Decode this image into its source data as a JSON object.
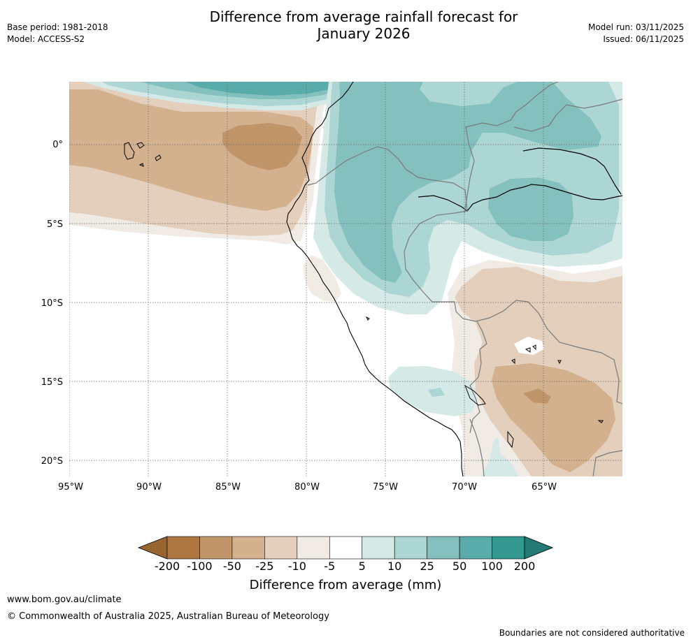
{
  "header": {
    "title_line1": "Difference from average rainfall forecast for",
    "title_line2": "January 2026",
    "base_period": "Base period: 1981-2018",
    "model": "Model: ACCESS-S2",
    "model_run": "Model run: 03/11/2025",
    "issued": "Issued: 06/11/2025"
  },
  "map": {
    "longitude_labels": [
      "95°W",
      "90°W",
      "85°W",
      "80°W",
      "75°W",
      "70°W",
      "65°W"
    ],
    "latitude_labels": [
      "0°",
      "5°S",
      "10°S",
      "15°S",
      "20°S"
    ]
  },
  "legend": {
    "title": "Difference from average (mm)",
    "ticks": [
      "-200",
      "-100",
      "-50",
      "-25",
      "-10",
      "-5",
      "5",
      "10",
      "25",
      "50",
      "100",
      "200"
    ],
    "colors": [
      "#986530",
      "#ae7741",
      "#c1956a",
      "#d3b08e",
      "#e3cfbc",
      "#f0ebe5",
      "#ffffff",
      "#d5e9e7",
      "#acd6d4",
      "#84c0be",
      "#5aacaa",
      "#33988f",
      "#257b74"
    ]
  },
  "footer": {
    "url": "www.bom.gov.au/climate",
    "copyright": "© Commonwealth of Australia 2025, Australian Bureau of Meteorology",
    "note": "Boundaries are not considered authoritative"
  }
}
